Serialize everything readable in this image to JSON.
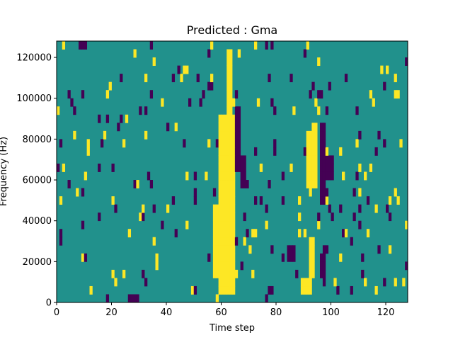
{
  "chart_data": {
    "type": "heatmap",
    "title": "Predicted : Gma",
    "xlabel": "Time step",
    "ylabel": "Frequency (Hz)",
    "xlim": [
      0,
      128
    ],
    "ylim": [
      0,
      128000
    ],
    "x_ticks": [
      0,
      20,
      40,
      60,
      80,
      100,
      120
    ],
    "y_ticks": [
      0,
      20000,
      40000,
      60000,
      80000,
      100000,
      120000
    ],
    "x_tick_labels": [
      "0",
      "20",
      "40",
      "60",
      "80",
      "100",
      "120"
    ],
    "y_tick_labels": [
      "0",
      "20000",
      "40000",
      "60000",
      "80000",
      "100000",
      "120000"
    ],
    "n_time_steps": 128,
    "n_frequency_bins": 32,
    "frequency_bin_hz": 4000,
    "colors": {
      "background_level": "#21918c",
      "high_level": "#fde725",
      "low_level": "#440154"
    },
    "levels": [
      "low",
      "background",
      "high"
    ],
    "high_regions": [
      {
        "t_start": 59,
        "t_end": 65,
        "f_start": 4000,
        "f_end": 92000
      },
      {
        "t_start": 62,
        "t_end": 64,
        "f_start": 92000,
        "f_end": 124000
      },
      {
        "t_start": 57,
        "t_end": 59,
        "f_start": 12000,
        "f_end": 48000
      },
      {
        "t_start": 91,
        "t_end": 95,
        "f_start": 56000,
        "f_end": 84000
      },
      {
        "t_start": 89,
        "t_end": 93,
        "f_start": 4000,
        "f_end": 12000
      },
      {
        "t_start": 92,
        "t_end": 94,
        "f_start": 12000,
        "f_end": 32000
      }
    ],
    "low_regions": [
      {
        "t_start": 26,
        "t_end": 30,
        "f_start": 0,
        "f_end": 4000
      },
      {
        "t_start": 65,
        "t_end": 67,
        "f_start": 64000,
        "f_end": 96000
      },
      {
        "t_start": 67,
        "t_end": 69,
        "f_start": 56000,
        "f_end": 72000
      },
      {
        "t_start": 96,
        "t_end": 98,
        "f_start": 48000,
        "f_end": 88000
      },
      {
        "t_start": 98,
        "t_end": 101,
        "f_start": 60000,
        "f_end": 72000
      },
      {
        "t_start": 84,
        "t_end": 87,
        "f_start": 20000,
        "f_end": 28000
      },
      {
        "t_start": 96,
        "t_end": 98,
        "f_start": 12000,
        "f_end": 24000
      },
      {
        "t_start": 95,
        "t_end": 97,
        "f_start": 100000,
        "f_end": 104000
      }
    ],
    "scatter_density": 0.055
  }
}
